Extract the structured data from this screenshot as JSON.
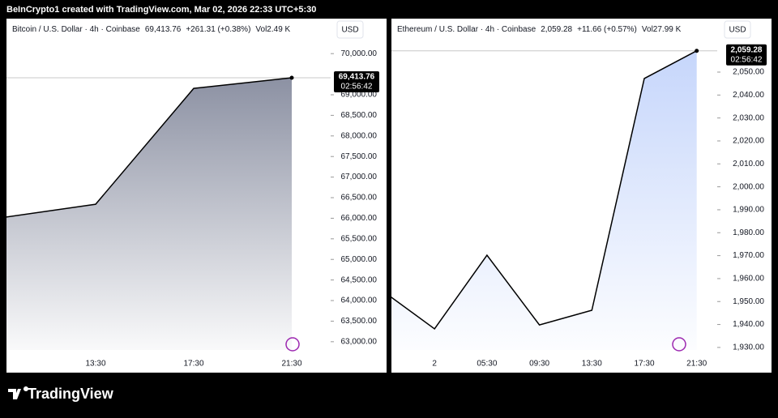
{
  "header": {
    "text": "BeInCrypto1 created with TradingView.com, Mar 02, 2026 22:33 UTC+5:30"
  },
  "footer": {
    "logo_text": "TradingView"
  },
  "chart_data": [
    {
      "type": "area",
      "title": "Bitcoin / U.S. Dollar · 4h · Coinbase",
      "last": "69,413.76",
      "change": "+261.31 (+0.38%)",
      "volume": "Vol2.49 K",
      "currency": "USD",
      "countdown": "02:56:42",
      "categories": [
        null,
        "13:30",
        "17:30",
        "21:30"
      ],
      "values": [
        66000,
        66340,
        69155,
        69413.76
      ],
      "value_labels": [
        null,
        null,
        null,
        "69,413.76"
      ],
      "color": "#000000",
      "fill_color": "#8c91a3",
      "ylim": [
        62800,
        70850
      ],
      "yticks": [
        {
          "value": 63000,
          "label": "63,000.00"
        },
        {
          "value": 63500,
          "label": "63,500.00"
        },
        {
          "value": 64000,
          "label": "64,000.00"
        },
        {
          "value": 64500,
          "label": "64,500.00"
        },
        {
          "value": 65000,
          "label": "65,000.00"
        },
        {
          "value": 65500,
          "label": "65,500.00"
        },
        {
          "value": 66000,
          "label": "66,000.00"
        },
        {
          "value": 66500,
          "label": "66,500.00"
        },
        {
          "value": 67000,
          "label": "67,000.00"
        },
        {
          "value": 67500,
          "label": "67,500.00"
        },
        {
          "value": 68000,
          "label": "68,000.00"
        },
        {
          "value": 68500,
          "label": "68,500.00"
        },
        {
          "value": 69000,
          "label": "69,000.00"
        },
        {
          "value": 70000,
          "label": "70,000.00"
        }
      ]
    },
    {
      "type": "area",
      "title": "Ethereum / U.S. Dollar · 4h · Coinbase",
      "last": "2,059.28",
      "change": "+11.66 (+0.57%)",
      "volume": "Vol27.99 K",
      "currency": "USD",
      "countdown": "02:56:42",
      "categories": [
        null,
        "2",
        "05:30",
        "09:30",
        "13:30",
        "17:30",
        "21:30"
      ],
      "values": [
        1954.8,
        1938.1,
        1970.2,
        1939.8,
        1946.2,
        2047.2,
        2059.28
      ],
      "value_labels": [
        null,
        null,
        null,
        null,
        null,
        null,
        "2,059.28"
      ],
      "color": "#000000",
      "fill_color": "#c6d6fb",
      "ylim": [
        1928.9,
        2073.3
      ],
      "yticks": [
        {
          "value": 1930,
          "label": "1,930.00"
        },
        {
          "value": 1940,
          "label": "1,940.00"
        },
        {
          "value": 1950,
          "label": "1,950.00"
        },
        {
          "value": 1960,
          "label": "1,960.00"
        },
        {
          "value": 1970,
          "label": "1,970.00"
        },
        {
          "value": 1980,
          "label": "1,980.00"
        },
        {
          "value": 1990,
          "label": "1,990.00"
        },
        {
          "value": 2000,
          "label": "2,000.00"
        },
        {
          "value": 2010,
          "label": "2,010.00"
        },
        {
          "value": 2020,
          "label": "2,020.00"
        },
        {
          "value": 2030,
          "label": "2,030.00"
        },
        {
          "value": 2040,
          "label": "2,040.00"
        },
        {
          "value": 2050,
          "label": "2,050.00"
        }
      ]
    }
  ]
}
